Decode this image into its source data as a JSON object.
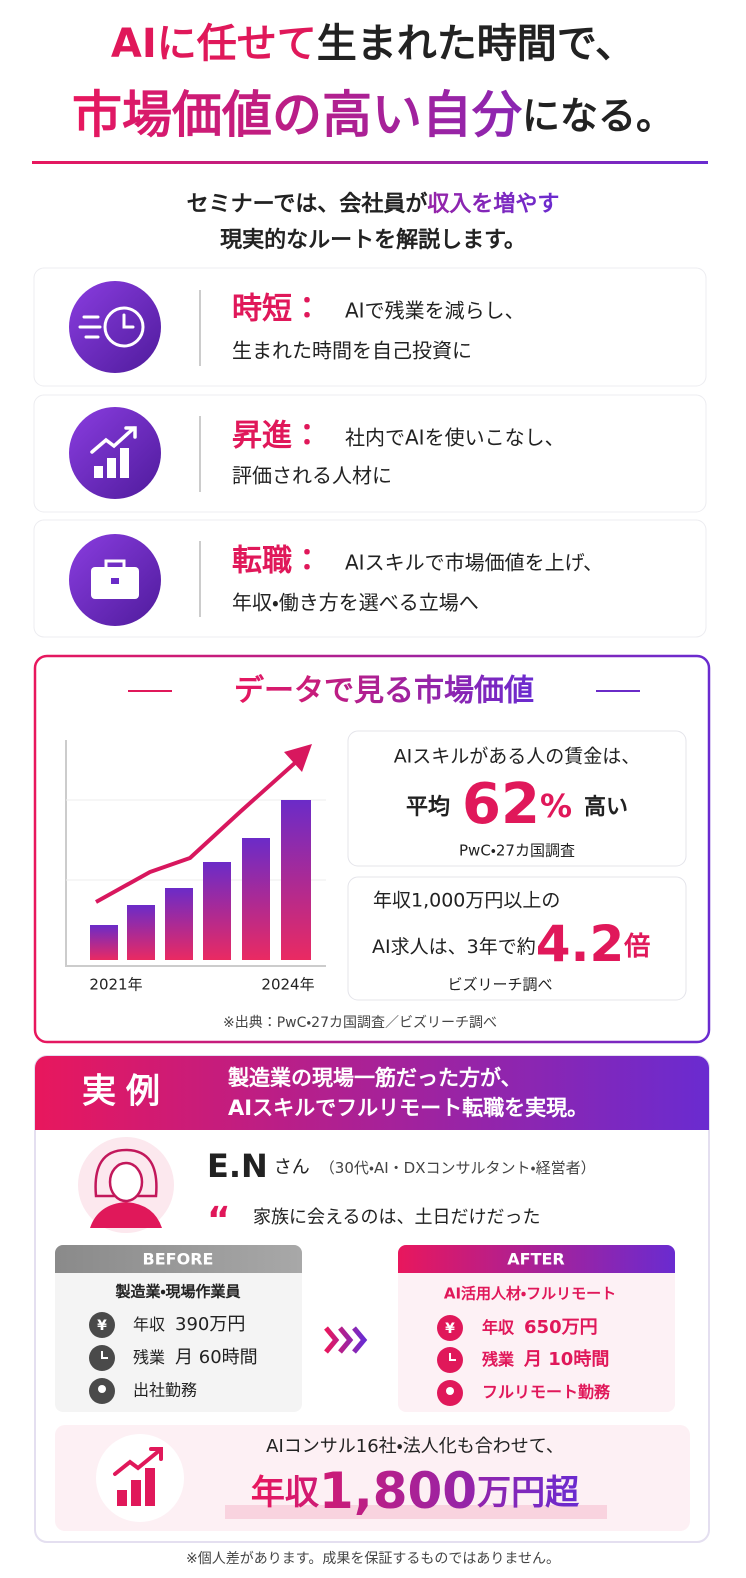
{
  "header": {
    "line1": {
      "accent": "AIに任せて",
      "rest": "生まれた時間で、"
    },
    "line2": {
      "accent": "市場価値の高い自分",
      "rest": "になる。"
    }
  },
  "intro": {
    "line1": {
      "before": "セミナーでは、会社員が",
      "accent": "収入を増やす"
    },
    "line2": "現実的なルートを解説します。"
  },
  "benefits": [
    {
      "label": "時短：",
      "line1": "AIで残業を減らし、",
      "line2": "生まれた時間を自己投資に"
    },
    {
      "label": "昇進：",
      "line1": "社内でAIを使いこなし、",
      "line2": "評価される人材に"
    },
    {
      "label": "転職：",
      "line1": "AIスキルで市場価値を上げ、",
      "line2": "年収・働き方を選べる立場へ"
    }
  ],
  "market": {
    "title": "データで見る市場価値",
    "chart": {
      "x_start": "2021年",
      "x_end": "2024年"
    },
    "stat1": {
      "line1": "AIスキルがある人の賃金は、",
      "prefix": "平均",
      "number": "62",
      "unit": "%",
      "suffix": "高い",
      "source": "PwC・27カ国調査"
    },
    "stat2": {
      "line1": "年収1,000万円以上の",
      "line2": "AI求人は、3年で約",
      "number": "4.2",
      "unit": "倍",
      "source": "ビズリーチ調べ"
    },
    "footnote": "※出典：PwC・27カ国調査／ビズリーチ調べ"
  },
  "case": {
    "badge": "実例",
    "headline": [
      "製造業の現場一筋だった方が、",
      "AIスキルでフルリモート転職を実現。"
    ],
    "name": "E.N",
    "honorific": "さん",
    "profile": "（30代・AI・DXコンサルタント・経営者）",
    "quote": "家族に会えるのは、土日だけだった",
    "before": {
      "label": "BEFORE",
      "role": "製造業・現場作業員",
      "items": [
        {
          "key": "年収",
          "value": "390万円"
        },
        {
          "key": "残業",
          "value": "月 60時間"
        },
        {
          "key": "出社勤務"
        }
      ]
    },
    "after": {
      "label": "AFTER",
      "role": "AI活用人材・フルリモート",
      "items": [
        {
          "key": "年収",
          "value": "650万円"
        },
        {
          "key": "残業",
          "value": "月 10時間"
        },
        {
          "key": "フルリモート勤務"
        }
      ]
    },
    "result": {
      "line1": "AIコンサル16社・法人化も合わせて、",
      "prefix": "年収",
      "number": "1,800",
      "suffix": "万円超"
    }
  },
  "disclaimer": "※個人差があります。成果を保証するものではありません。"
}
